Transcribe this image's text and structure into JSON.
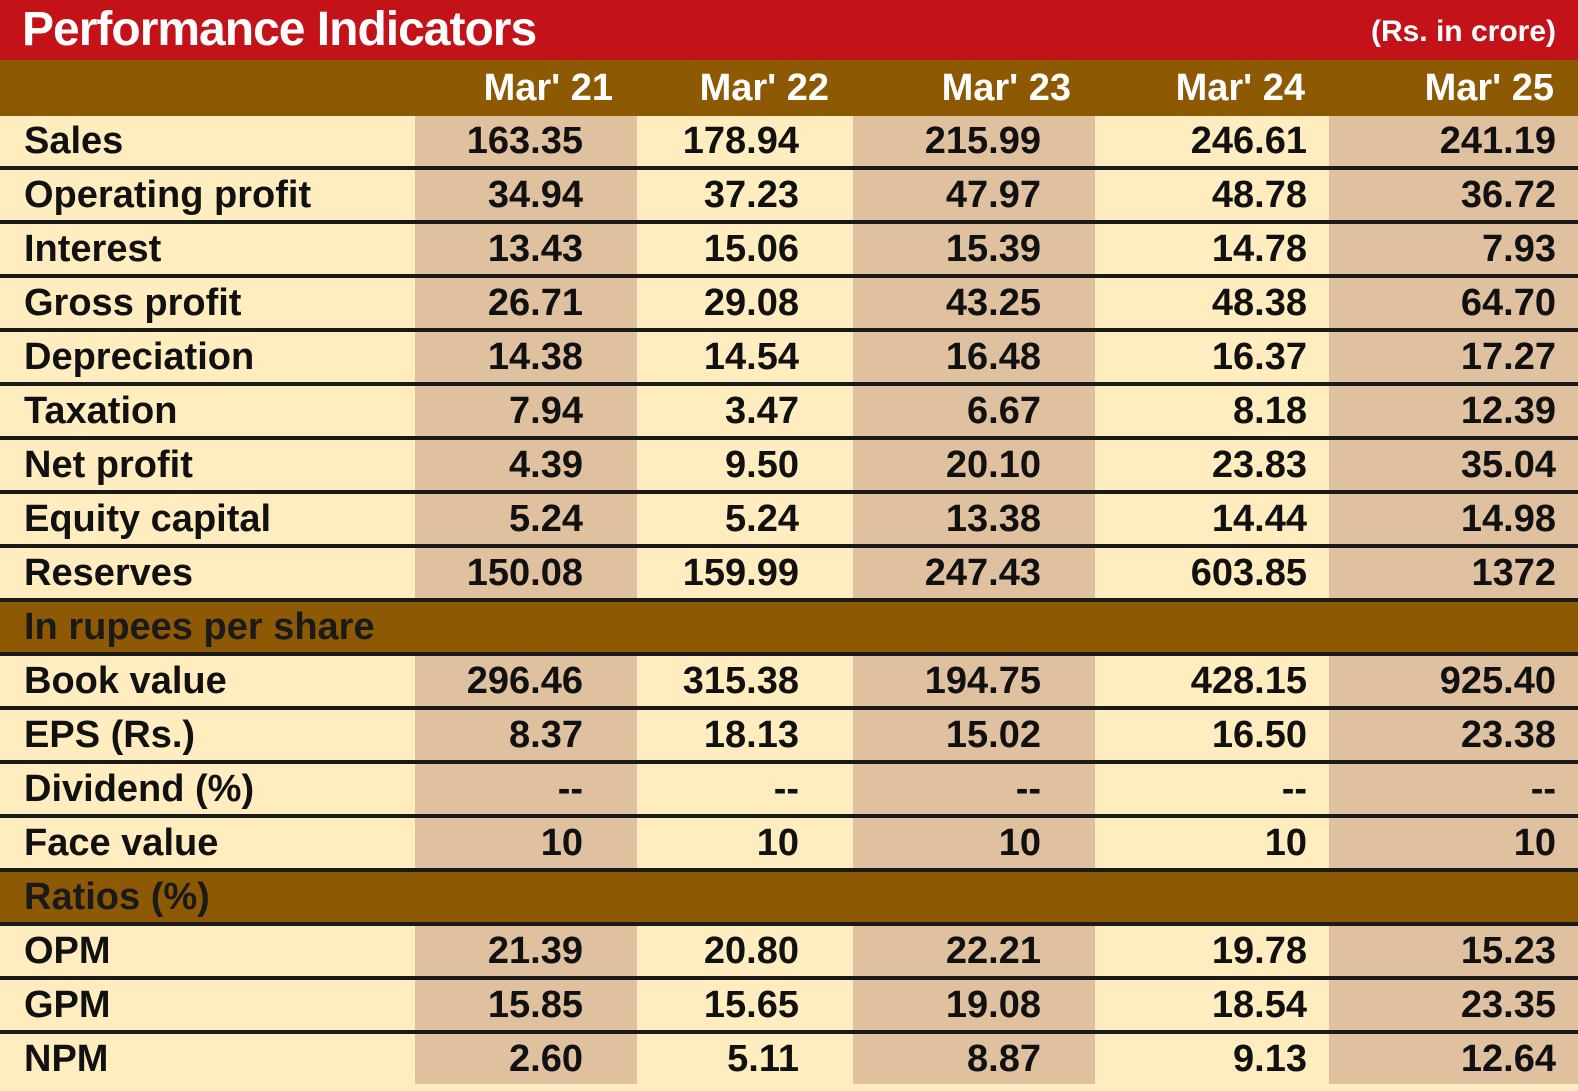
{
  "title": "Performance   Indicators",
  "unit_note": "(Rs. in crore)",
  "colors": {
    "title_bg": "#c41219",
    "header_bg": "#8e5903",
    "light_cell": "#ffedc0",
    "shaded_cell": "#dfc19f"
  },
  "chart_data": {
    "type": "table",
    "columns": [
      "Mar' 21",
      "Mar' 22",
      "Mar' 23",
      "Mar' 24",
      "Mar' 25"
    ],
    "sections": [
      {
        "heading": "",
        "rows": [
          {
            "label": "Sales",
            "values": [
              "163.35",
              "178.94",
              "215.99",
              "246.61",
              "241.19"
            ]
          },
          {
            "label": "Operating profit",
            "values": [
              "34.94",
              "37.23",
              "47.97",
              "48.78",
              "36.72"
            ]
          },
          {
            "label": "Interest",
            "values": [
              "13.43",
              "15.06",
              "15.39",
              "14.78",
              "7.93"
            ]
          },
          {
            "label": "Gross profit",
            "values": [
              "26.71",
              "29.08",
              "43.25",
              "48.38",
              "64.70"
            ]
          },
          {
            "label": "Depreciation",
            "values": [
              "14.38",
              "14.54",
              "16.48",
              "16.37",
              "17.27"
            ]
          },
          {
            "label": "Taxation",
            "values": [
              "7.94",
              "3.47",
              "6.67",
              "8.18",
              "12.39"
            ]
          },
          {
            "label": "Net profit",
            "values": [
              "4.39",
              "9.50",
              "20.10",
              "23.83",
              "35.04"
            ]
          },
          {
            "label": "Equity capital",
            "values": [
              "5.24",
              "5.24",
              "13.38",
              "14.44",
              "14.98"
            ]
          },
          {
            "label": "Reserves",
            "values": [
              "150.08",
              "159.99",
              "247.43",
              "603.85",
              "1372"
            ]
          }
        ]
      },
      {
        "heading": "In rupees per share",
        "rows": [
          {
            "label": "Book value",
            "values": [
              "296.46",
              "315.38",
              "194.75",
              "428.15",
              "925.40"
            ]
          },
          {
            "label": "EPS (Rs.)",
            "values": [
              "8.37",
              "18.13",
              "15.02",
              "16.50",
              "23.38"
            ]
          },
          {
            "label": "Dividend (%)",
            "values": [
              "--",
              "--",
              "--",
              "--",
              "--"
            ]
          },
          {
            "label": "Face  value",
            "values": [
              "10",
              "10",
              "10",
              "10",
              "10"
            ]
          }
        ]
      },
      {
        "heading": "Ratios (%)",
        "rows": [
          {
            "label": "OPM",
            "values": [
              "21.39",
              "20.80",
              "22.21",
              "19.78",
              "15.23"
            ]
          },
          {
            "label": "GPM",
            "values": [
              "15.85",
              "15.65",
              "19.08",
              "18.54",
              "23.35"
            ]
          },
          {
            "label": "NPM",
            "values": [
              "2.60",
              "5.11",
              "8.87",
              "9.13",
              "12.64"
            ]
          }
        ]
      }
    ]
  }
}
